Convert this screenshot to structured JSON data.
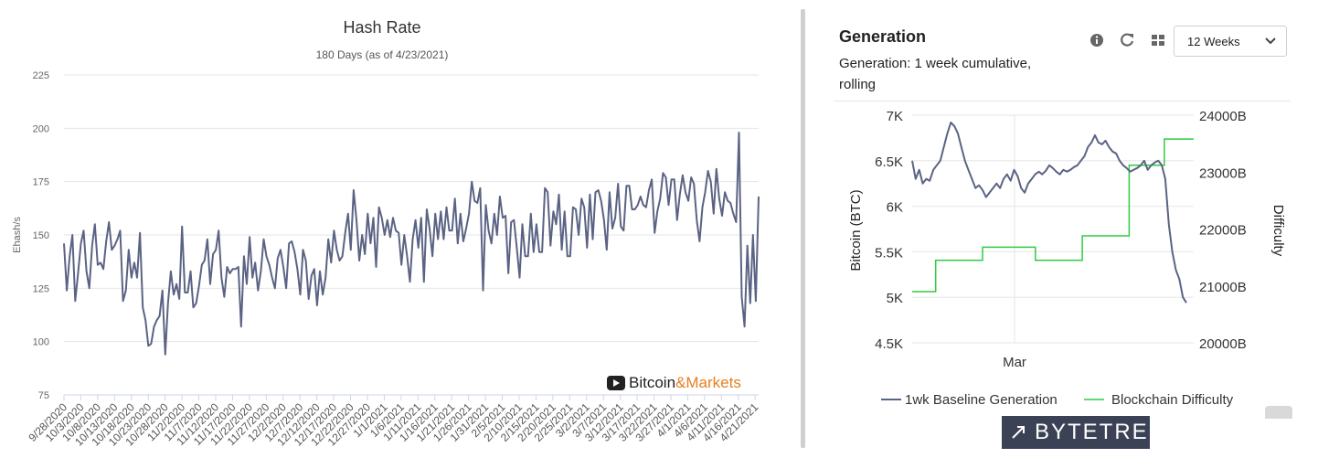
{
  "left": {
    "logo": {
      "text_a": "Bitcoin",
      "text_b": "&Markets"
    }
  },
  "right": {
    "title": "Generation",
    "subtitle": "Generation: 1 week cumulative, rolling",
    "range_select": "12 Weeks",
    "icons": [
      "info-icon",
      "refresh-icon",
      "grid-icon",
      "chevron-down-icon"
    ],
    "brand": "BYTETREE"
  },
  "colors": {
    "line_main": "#5b6384",
    "line_green": "#2ecc40",
    "grid": "#e6e6e6",
    "brand_bg": "#3b4255",
    "logo_orange": "#e67e22"
  },
  "chart_data": [
    {
      "type": "line",
      "title": "Hash Rate",
      "subtitle": "180 Days (as of 4/23/2021)",
      "ylabel": "Ehash/s",
      "xlabel": "",
      "ylim": [
        75,
        225
      ],
      "yticks": [
        75,
        100,
        125,
        150,
        175,
        200,
        225
      ],
      "grid": true,
      "x_tick_labels": [
        "9/28/2020",
        "10/3/2020",
        "10/8/2020",
        "10/13/2020",
        "10/18/2020",
        "10/23/2020",
        "10/28/2020",
        "11/2/2020",
        "11/7/2020",
        "11/12/2020",
        "11/17/2020",
        "11/22/2020",
        "11/27/2020",
        "12/2/2020",
        "12/7/2020",
        "12/12/2020",
        "12/17/2020",
        "12/22/2020",
        "12/27/2020",
        "1/1/2021",
        "1/6/2021",
        "1/11/2021",
        "1/16/2021",
        "1/21/2021",
        "1/26/2021",
        "1/31/2021",
        "2/5/2021",
        "2/10/2021",
        "2/15/2021",
        "2/20/2021",
        "2/25/2021",
        "3/2/2021",
        "3/7/2021",
        "3/12/2021",
        "3/17/2021",
        "3/22/2021",
        "3/27/2021",
        "4/1/2021",
        "4/6/2021",
        "4/11/2021",
        "4/16/2021",
        "4/21/2021"
      ],
      "series": [
        {
          "values": [
            146,
            124,
            140,
            150,
            119,
            132,
            146,
            152,
            133,
            125,
            145,
            155,
            136,
            137,
            134,
            147,
            156,
            143,
            145,
            148,
            152,
            119,
            124,
            143,
            130,
            137,
            130,
            151,
            116,
            110,
            98,
            99,
            107,
            110,
            112,
            124,
            94,
            118,
            133,
            122,
            127,
            120,
            154,
            123,
            123,
            133,
            116,
            118,
            126,
            136,
            138,
            148,
            127,
            141,
            143,
            152,
            130,
            121,
            135,
            132,
            134,
            134,
            135,
            107,
            140,
            127,
            149,
            130,
            137,
            124,
            133,
            148,
            140,
            136,
            130,
            125,
            139,
            143,
            135,
            125,
            146,
            147,
            142,
            134,
            122,
            143,
            138,
            120,
            131,
            134,
            117,
            133,
            122,
            130,
            148,
            137,
            152,
            143,
            138,
            140,
            151,
            160,
            143,
            171,
            157,
            138,
            150,
            141,
            160,
            146,
            158,
            135,
            163,
            158,
            150,
            157,
            149,
            158,
            152,
            151,
            136,
            150,
            140,
            128,
            148,
            157,
            144,
            158,
            128,
            162,
            153,
            140,
            160,
            148,
            161,
            148,
            163,
            152,
            152,
            167,
            146,
            160,
            147,
            153,
            160,
            175,
            166,
            165,
            172,
            124,
            164,
            152,
            146,
            160,
            150,
            168,
            158,
            159,
            132,
            156,
            157,
            144,
            130,
            155,
            140,
            140,
            160,
            142,
            155,
            142,
            142,
            172,
            170,
            145,
            161,
            155,
            169,
            143,
            161,
            140,
            140,
            163,
            162,
            150,
            167,
            163,
            144,
            169,
            148,
            170,
            171,
            166,
            157,
            143,
            170,
            153,
            158,
            174,
            154,
            152,
            173,
            173,
            162,
            162,
            164,
            168,
            164,
            163,
            171,
            176,
            151,
            161,
            167,
            179,
            177,
            164,
            176,
            176,
            157,
            169,
            178,
            170,
            166,
            177,
            174,
            157,
            147,
            163,
            170,
            180,
            175,
            160,
            181,
            167,
            159,
            170,
            166,
            165,
            160,
            156,
            198,
            121,
            107,
            145,
            118,
            150,
            119,
            168
          ]
        }
      ]
    },
    {
      "type": "line",
      "title": "",
      "ylabel": "Bitcoin (BTC)",
      "y2label": "Difficulty",
      "ylim": [
        4500,
        7000
      ],
      "yticks": [
        4500,
        5000,
        5500,
        6000,
        6500,
        7000
      ],
      "ytick_labels": [
        "4.5K",
        "5K",
        "5.5K",
        "6K",
        "6.5K",
        "7K"
      ],
      "y2lim": [
        20000,
        24000
      ],
      "y2ticks": [
        20000,
        21000,
        22000,
        23000,
        24000
      ],
      "y2tick_labels": [
        "20000B",
        "21000B",
        "22000B",
        "23000B",
        "24000B"
      ],
      "x_tick_labels": [
        "Mar"
      ],
      "grid": true,
      "legend": "bottom",
      "series": [
        {
          "name": "1wk Baseline Generation",
          "axis": "left",
          "values": [
            6500,
            6300,
            6400,
            6250,
            6300,
            6280,
            6400,
            6450,
            6500,
            6650,
            6800,
            6920,
            6880,
            6800,
            6650,
            6500,
            6400,
            6300,
            6200,
            6230,
            6180,
            6100,
            6150,
            6200,
            6250,
            6200,
            6300,
            6350,
            6280,
            6400,
            6330,
            6200,
            6150,
            6250,
            6300,
            6350,
            6380,
            6350,
            6390,
            6450,
            6420,
            6380,
            6350,
            6400,
            6380,
            6400,
            6430,
            6450,
            6500,
            6550,
            6650,
            6700,
            6780,
            6700,
            6680,
            6720,
            6650,
            6600,
            6580,
            6500,
            6450,
            6420,
            6380,
            6400,
            6420,
            6450,
            6500,
            6400,
            6450,
            6480,
            6500,
            6450,
            6300,
            5800,
            5500,
            5300,
            5200,
            5000,
            4940
          ]
        },
        {
          "name": "Blockchain Difficulty",
          "axis": "right",
          "steps": [
            [
              0,
              20900
            ],
            [
              4,
              20900
            ],
            [
              4,
              21450
            ],
            [
              12,
              21450
            ],
            [
              12,
              21680
            ],
            [
              21,
              21680
            ],
            [
              21,
              21450
            ],
            [
              29,
              21450
            ],
            [
              29,
              21880
            ],
            [
              37,
              21880
            ],
            [
              37,
              23120
            ],
            [
              43,
              23120
            ],
            [
              43,
              23580
            ],
            [
              48,
              23580
            ]
          ]
        }
      ]
    }
  ]
}
